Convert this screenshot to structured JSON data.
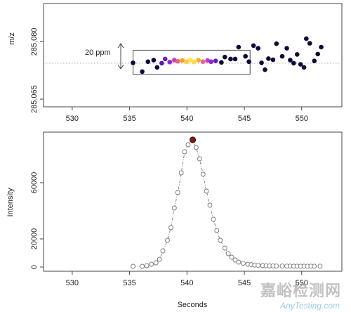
{
  "chart_data": [
    {
      "type": "scatter",
      "title": "",
      "xlabel": "",
      "ylabel": "m/z",
      "xlim": [
        527.5,
        553.5
      ],
      "ylim": [
        285.063,
        285.09
      ],
      "x_ticks": [
        530,
        535,
        540,
        545,
        550
      ],
      "y_ticks": [
        285.065,
        285.08
      ],
      "reference_line_y": 285.0744,
      "ppm_window": {
        "label": "20 ppm",
        "x_range": [
          535.3,
          545.5
        ],
        "y_range": [
          285.0715,
          285.0778
        ]
      },
      "colors": {
        "outside": "#0b0a3a",
        "in_window_scale": [
          "#1a0a8c",
          "#7a1fd6",
          "#e040c0",
          "#ff9f1a",
          "#ffe84a"
        ]
      },
      "series": [
        {
          "points": [
            {
              "x": 535.3,
              "y": 285.0745,
              "in_window": false
            },
            {
              "x": 536.1,
              "y": 285.0722,
              "in_window": false
            },
            {
              "x": 536.6,
              "y": 285.0748,
              "in_window": false
            },
            {
              "x": 537.1,
              "y": 285.0752,
              "in_window": false
            },
            {
              "x": 537.4,
              "y": 285.0733,
              "in_window": false
            },
            {
              "x": 537.8,
              "y": 285.0744,
              "in_window": true,
              "intensity": 0.15
            },
            {
              "x": 538.1,
              "y": 285.0755,
              "in_window": true,
              "intensity": 0.2
            },
            {
              "x": 538.5,
              "y": 285.0747,
              "in_window": true,
              "intensity": 0.3
            },
            {
              "x": 538.9,
              "y": 285.0752,
              "in_window": true,
              "intensity": 0.45
            },
            {
              "x": 539.2,
              "y": 285.0749,
              "in_window": true,
              "intensity": 0.6
            },
            {
              "x": 539.6,
              "y": 285.0751,
              "in_window": true,
              "intensity": 0.75
            },
            {
              "x": 540.0,
              "y": 285.0748,
              "in_window": true,
              "intensity": 0.9
            },
            {
              "x": 540.3,
              "y": 285.0753,
              "in_window": true,
              "intensity": 1.0
            },
            {
              "x": 540.6,
              "y": 285.0747,
              "in_window": true,
              "intensity": 0.95
            },
            {
              "x": 541.0,
              "y": 285.0752,
              "in_window": true,
              "intensity": 0.8
            },
            {
              "x": 541.4,
              "y": 285.0748,
              "in_window": true,
              "intensity": 0.6
            },
            {
              "x": 541.8,
              "y": 285.0751,
              "in_window": true,
              "intensity": 0.45
            },
            {
              "x": 542.1,
              "y": 285.0748,
              "in_window": true,
              "intensity": 0.3
            },
            {
              "x": 542.5,
              "y": 285.075,
              "in_window": true,
              "intensity": 0.2
            },
            {
              "x": 543.0,
              "y": 285.0746,
              "in_window": false
            },
            {
              "x": 543.3,
              "y": 285.076,
              "in_window": false
            },
            {
              "x": 543.8,
              "y": 285.0755,
              "in_window": false
            },
            {
              "x": 544.2,
              "y": 285.0755,
              "in_window": false
            },
            {
              "x": 544.5,
              "y": 285.0786,
              "in_window": false
            },
            {
              "x": 545.1,
              "y": 285.0762,
              "in_window": false
            },
            {
              "x": 545.4,
              "y": 285.0748,
              "in_window": false
            },
            {
              "x": 545.8,
              "y": 285.079,
              "in_window": false
            },
            {
              "x": 546.2,
              "y": 285.0783,
              "in_window": false
            },
            {
              "x": 546.5,
              "y": 285.0745,
              "in_window": false
            },
            {
              "x": 546.8,
              "y": 285.0727,
              "in_window": false
            },
            {
              "x": 547.1,
              "y": 285.0756,
              "in_window": false
            },
            {
              "x": 547.5,
              "y": 285.0753,
              "in_window": false
            },
            {
              "x": 547.8,
              "y": 285.0795,
              "in_window": false
            },
            {
              "x": 548.3,
              "y": 285.0762,
              "in_window": false
            },
            {
              "x": 548.7,
              "y": 285.0783,
              "in_window": false
            },
            {
              "x": 549.0,
              "y": 285.0752,
              "in_window": false
            },
            {
              "x": 549.3,
              "y": 285.0744,
              "in_window": false
            },
            {
              "x": 549.6,
              "y": 285.0767,
              "in_window": false
            },
            {
              "x": 549.9,
              "y": 285.0741,
              "in_window": false
            },
            {
              "x": 550.2,
              "y": 285.0733,
              "in_window": false
            },
            {
              "x": 550.4,
              "y": 285.0808,
              "in_window": false
            },
            {
              "x": 550.7,
              "y": 285.0796,
              "in_window": false
            },
            {
              "x": 551.1,
              "y": 285.075,
              "in_window": false
            },
            {
              "x": 551.4,
              "y": 285.0768,
              "in_window": false
            },
            {
              "x": 551.7,
              "y": 285.0786,
              "in_window": false
            }
          ]
        }
      ]
    },
    {
      "type": "line",
      "title": "",
      "xlabel": "Seconds",
      "ylabel": "Intensity",
      "xlim": [
        527.5,
        553.5
      ],
      "ylim": [
        -3000,
        96000
      ],
      "x_ticks": [
        530,
        535,
        540,
        545,
        550
      ],
      "y_ticks": [
        0,
        20000,
        60000
      ],
      "peak": {
        "x": 540.5,
        "y": 90500,
        "color": "#7a1e14"
      },
      "series": [
        {
          "line_style": "dash-dot",
          "marker": "open-circle",
          "x": [
            535.3,
            536.1,
            536.5,
            536.9,
            537.3,
            537.6,
            537.9,
            538.3,
            538.6,
            538.9,
            539.2,
            539.5,
            539.8,
            540.1,
            540.5,
            540.8,
            541.1,
            541.4,
            541.7,
            542.0,
            542.3,
            542.6,
            542.9,
            543.3,
            543.6,
            543.9,
            544.2,
            544.5,
            544.9,
            545.3,
            545.6,
            545.9,
            546.2,
            546.6,
            546.9,
            547.2,
            547.5,
            547.8,
            548.3,
            548.7,
            549.0,
            549.3,
            549.6,
            549.9,
            550.2,
            550.5,
            550.8,
            551.1,
            551.6
          ],
          "y": [
            500,
            500,
            1000,
            2000,
            3000,
            5500,
            11500,
            19000,
            28000,
            42000,
            53000,
            67000,
            82000,
            87000,
            90500,
            85000,
            77000,
            66000,
            54000,
            44000,
            34000,
            26000,
            19000,
            13500,
            9500,
            7000,
            5000,
            3500,
            2700,
            2000,
            1700,
            1400,
            1200,
            1000,
            900,
            800,
            800,
            700,
            700,
            650,
            650,
            600,
            600,
            600,
            600,
            600,
            600,
            600,
            600
          ]
        }
      ]
    }
  ]
}
